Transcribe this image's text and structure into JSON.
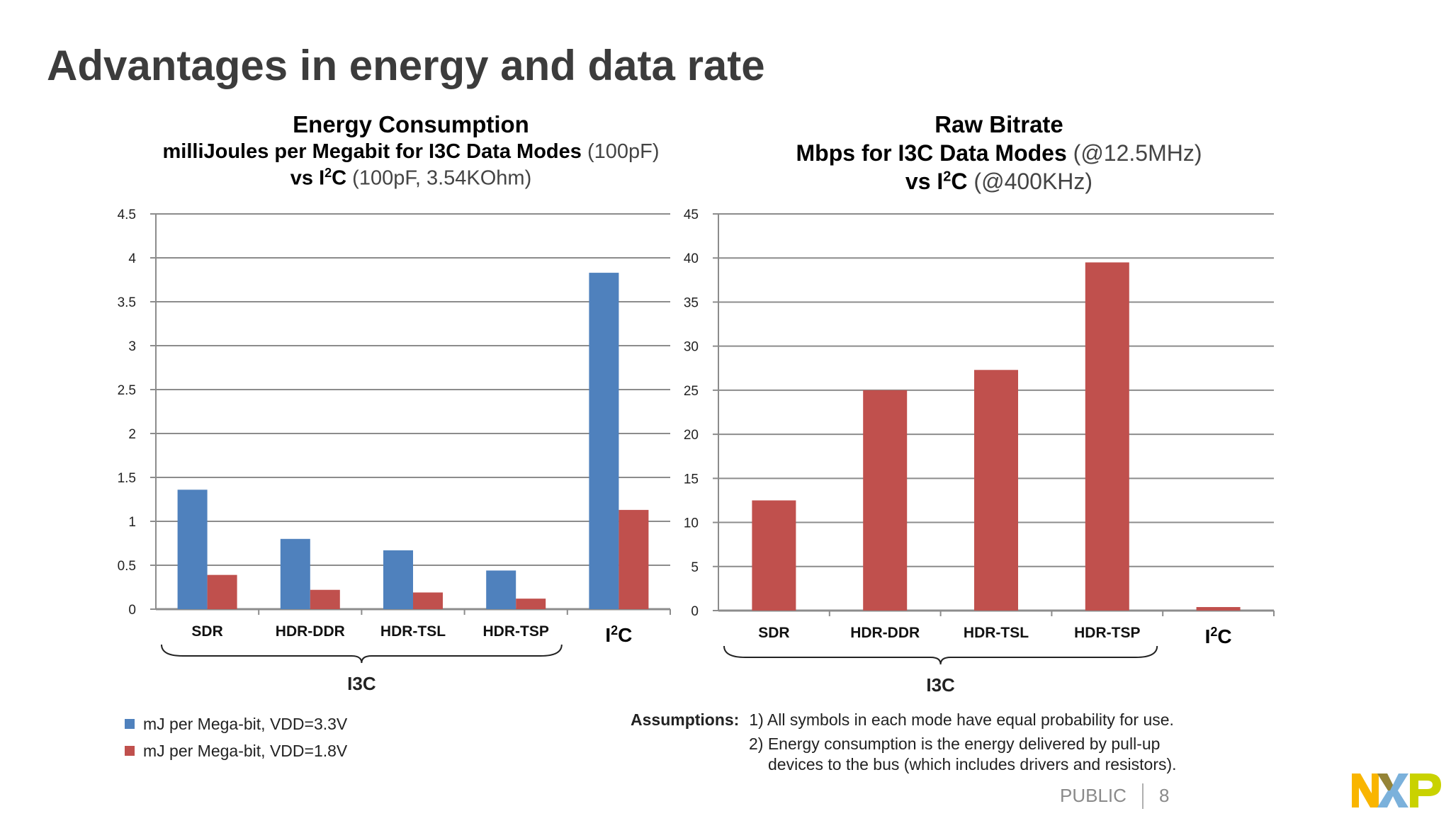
{
  "slide": {
    "title": "Advantages in energy and data rate",
    "footer_public": "PUBLIC",
    "page_number": "8",
    "logo_text": "NXP"
  },
  "colors": {
    "blue": "#4f81bd",
    "red": "#c0504d",
    "grid": "#8c8c8c",
    "text": "#000000"
  },
  "chart_data": [
    {
      "type": "bar",
      "title": "Energy Consumption",
      "subtitle_bold": "milliJoules per Megabit for I3C Data Modes",
      "subtitle_regular": "(100pF)",
      "subtitle2_bold_pre": "vs I",
      "subtitle2_sup": "2",
      "subtitle2_bold_post": "C",
      "subtitle2_regular": "(100pF, 3.54KOhm)",
      "categories": [
        "SDR",
        "HDR-DDR",
        "HDR-TSL",
        "HDR-TSP",
        "I2C"
      ],
      "series": [
        {
          "name": "mJ per Mega-bit, VDD=3.3V",
          "values": [
            1.36,
            0.8,
            0.67,
            0.44,
            3.83
          ]
        },
        {
          "name": "mJ per Mega-bit, VDD=1.8V",
          "values": [
            0.39,
            0.22,
            0.19,
            0.12,
            1.13
          ]
        }
      ],
      "ylim": [
        0,
        4.5
      ],
      "yticks": [
        "0",
        "0.5",
        "1",
        "1.5",
        "2",
        "2.5",
        "3",
        "3.5",
        "4",
        "4.5"
      ],
      "group_label": "I3C",
      "grid": true,
      "legend": "bottom-left"
    },
    {
      "type": "bar",
      "title": "Raw Bitrate",
      "subtitle_bold": "Mbps for I3C Data Modes",
      "subtitle_regular": "(@12.5MHz)",
      "subtitle2_bold_pre": "vs I",
      "subtitle2_sup": "2",
      "subtitle2_bold_post": "C",
      "subtitle2_regular": "(@400KHz)",
      "categories": [
        "SDR",
        "HDR-DDR",
        "HDR-TSL",
        "HDR-TSP",
        "I2C"
      ],
      "series": [
        {
          "values": [
            12.5,
            25,
            27.3,
            39.5,
            0.4
          ]
        }
      ],
      "ylim": [
        0,
        45
      ],
      "yticks": [
        "0",
        "5",
        "10",
        "15",
        "20",
        "25",
        "30",
        "35",
        "40",
        "45"
      ],
      "group_label": "I3C",
      "grid": true
    }
  ],
  "i2c_label": {
    "pre": "I",
    "sup": "2",
    "post": "C"
  },
  "assumptions": {
    "label": "Assumptions:",
    "item1": "1) All symbols in each mode have equal probability for use.",
    "item2a": "2) Energy consumption is the energy delivered by pull-up",
    "item2b": "devices to the bus (which includes drivers and resistors)."
  }
}
